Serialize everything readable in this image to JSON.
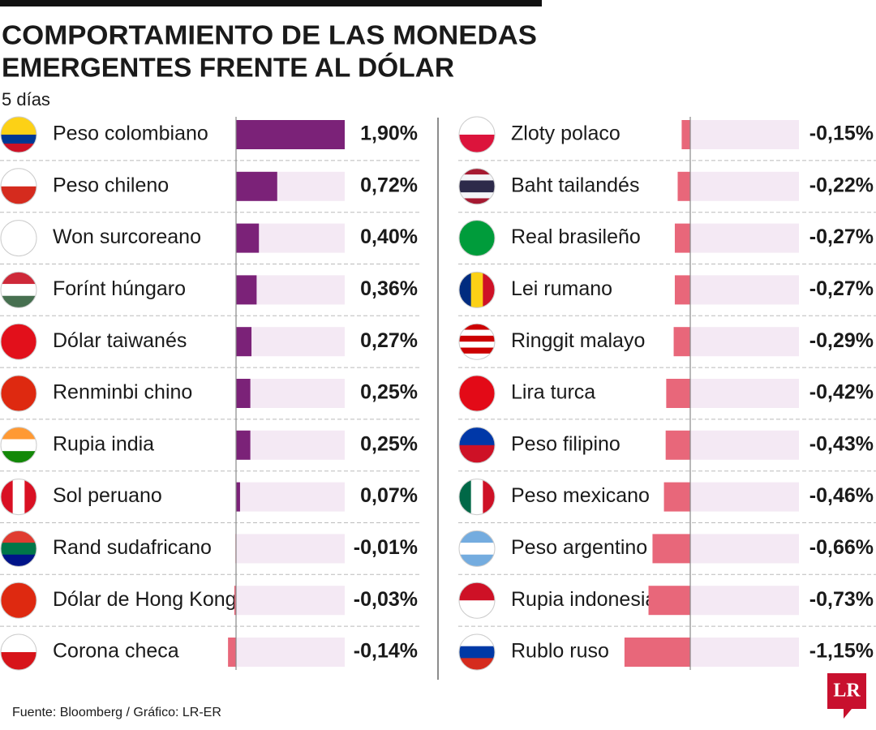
{
  "title": [
    "COMPORTAMIENTO DE LAS MONEDAS",
    "EMERGENTES FRENTE AL DÓLAR"
  ],
  "subtitle": "5 días",
  "source": "Fuente: Bloomberg / Gráfico: LR-ER",
  "logo": "LR",
  "chart_data": [
    {
      "type": "bar",
      "orientation": "horizontal",
      "categories": [
        "Peso colombiano",
        "Peso chileno",
        "Won surcoreano",
        "Forínt húngaro",
        "Dólar taiwanés",
        "Renminbi chino",
        "Rupia india",
        "Sol peruano",
        "Rand sudafricano",
        "Dólar de Hong Kong",
        "Corona checa"
      ],
      "values": [
        1.9,
        0.72,
        0.4,
        0.36,
        0.27,
        0.25,
        0.25,
        0.07,
        -0.01,
        -0.03,
        -0.14
      ],
      "value_labels": [
        "1,90%",
        "0,72%",
        "0,40%",
        "0,36%",
        "0,27%",
        "0,25%",
        "0,25%",
        "0,07%",
        "-0,01%",
        "-0,03%",
        "-0,14%"
      ],
      "color": "#7b2278",
      "negative_color": "#e8677a",
      "track_color": "#f4e9f4",
      "xlim": [
        0,
        1.9
      ]
    },
    {
      "type": "bar",
      "orientation": "horizontal",
      "categories": [
        "Zloty polaco",
        "Baht tailandés",
        "Real brasileño",
        "Lei rumano",
        "Ringgit malayo",
        "Lira turca",
        "Peso filipino",
        "Peso mexicano",
        "Peso argentino",
        "Rupia indonesia",
        "Rublo ruso"
      ],
      "values": [
        -0.15,
        -0.22,
        -0.27,
        -0.27,
        -0.29,
        -0.42,
        -0.43,
        -0.46,
        -0.66,
        -0.73,
        -1.15
      ],
      "value_labels": [
        "-0,15%",
        "-0,22%",
        "-0,27%",
        "-0,27%",
        "-0,29%",
        "-0,42%",
        "-0,43%",
        "-0,46%",
        "-0,66%",
        "-0,73%",
        "-1,15%"
      ],
      "color": "#7b2278",
      "negative_color": "#e8677a",
      "track_color": "#f4e9f4",
      "xlim": [
        0,
        1.9
      ]
    }
  ]
}
